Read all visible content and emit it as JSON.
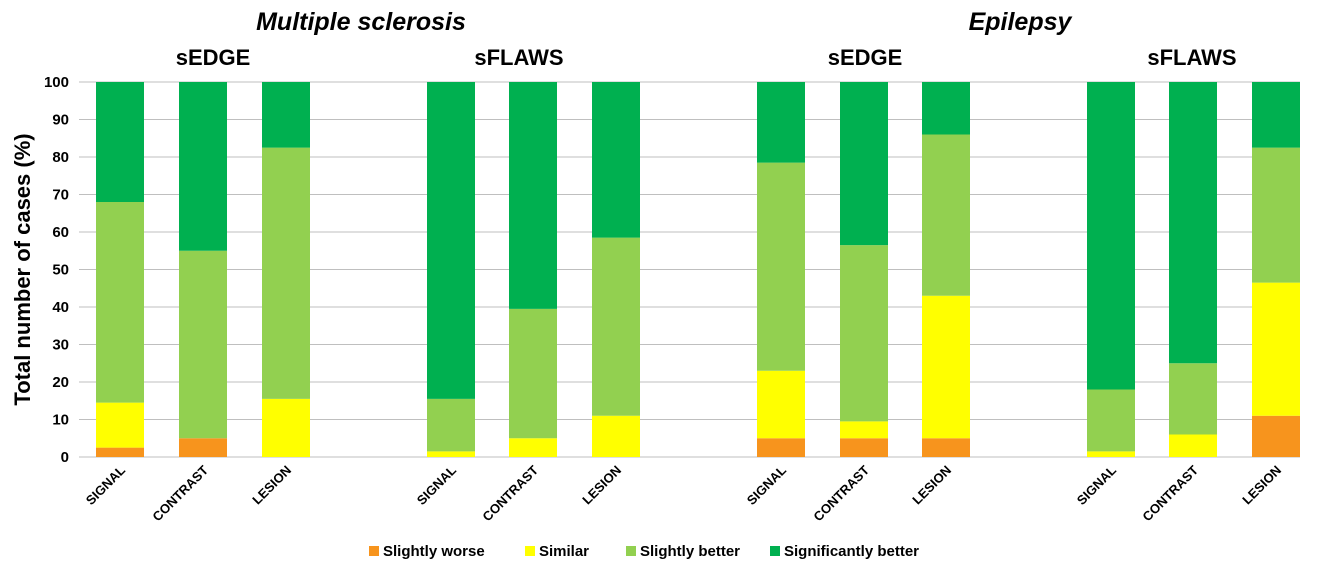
{
  "chart_data": {
    "type": "bar",
    "stacked": true,
    "ylabel": "Total number of cases (%)",
    "ylim": [
      0,
      100
    ],
    "yticks": [
      0,
      10,
      20,
      30,
      40,
      50,
      60,
      70,
      80,
      90,
      100
    ],
    "grid": true,
    "legend_position": "bottom",
    "series_meta": [
      {
        "name": "Slightly worse",
        "color": "#f7941d"
      },
      {
        "name": "Similar",
        "color": "#ffff00"
      },
      {
        "name": "Slightly better",
        "color": "#92d050"
      },
      {
        "name": "Significantly better",
        "color": "#00b050"
      }
    ],
    "groups": [
      {
        "title": "Multiple sclerosis",
        "subgroups": [
          {
            "title": "sEDGE",
            "bars": [
              {
                "category": "SIGNAL",
                "values": [
                  2.5,
                  12,
                  53.5,
                  32
                ]
              },
              {
                "category": "CONTRAST",
                "values": [
                  5,
                  0,
                  50,
                  45
                ]
              },
              {
                "category": "LESION",
                "values": [
                  0,
                  15.5,
                  67,
                  17.5
                ]
              }
            ]
          },
          {
            "title": "sFLAWS",
            "bars": [
              {
                "category": "SIGNAL",
                "values": [
                  0,
                  1.5,
                  14,
                  84.5
                ]
              },
              {
                "category": "CONTRAST",
                "values": [
                  0,
                  5,
                  34.5,
                  60.5
                ]
              },
              {
                "category": "LESION",
                "values": [
                  0,
                  11,
                  47.5,
                  41.5
                ]
              }
            ]
          }
        ]
      },
      {
        "title": "Epilepsy",
        "subgroups": [
          {
            "title": "sEDGE",
            "bars": [
              {
                "category": "SIGNAL",
                "values": [
                  5,
                  18,
                  55.5,
                  21.5
                ]
              },
              {
                "category": "CONTRAST",
                "values": [
                  5,
                  4.5,
                  47,
                  43.5
                ]
              },
              {
                "category": "LESION",
                "values": [
                  5,
                  38,
                  43,
                  14
                ]
              }
            ]
          },
          {
            "title": "sFLAWS",
            "bars": [
              {
                "category": "SIGNAL",
                "values": [
                  0,
                  1.5,
                  16.5,
                  82
                ]
              },
              {
                "category": "CONTRAST",
                "values": [
                  0,
                  6,
                  19,
                  75
                ]
              },
              {
                "category": "LESION",
                "values": [
                  11,
                  35.5,
                  36,
                  17.5
                ]
              }
            ]
          }
        ]
      }
    ]
  }
}
